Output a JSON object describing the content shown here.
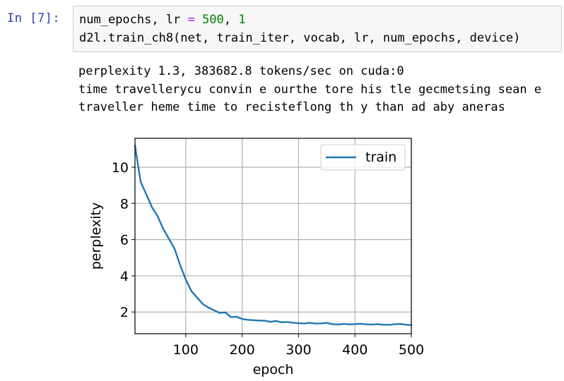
{
  "cell": {
    "prompt": "In [7]:",
    "code_line1": {
      "ident": "num_epochs, lr ",
      "op": "=",
      "num1": "500",
      "sep": ", ",
      "num2": "1"
    },
    "code_line2": "d2l.train_ch8(net, train_iter, vocab, lr, num_epochs, device)"
  },
  "output": {
    "lines": [
      "perplexity 1.3, 383682.8 tokens/sec on cuda:0",
      "time travellerycu convin e ourthe tore his tle gecmetsing sean e",
      "traveller heme time to recisteflong th y than ad aby aneras"
    ]
  },
  "chart_data": {
    "type": "line",
    "xlabel": "epoch",
    "ylabel": "perplexity",
    "xlim": [
      10,
      500
    ],
    "ylim": [
      0.8,
      11.6
    ],
    "xticks": [
      100,
      200,
      300,
      400,
      500
    ],
    "yticks": [
      2,
      4,
      6,
      8,
      10
    ],
    "grid": true,
    "legend": "top-right",
    "series": [
      {
        "name": "train",
        "color": "#1f77b4",
        "x": [
          10,
          20,
          30,
          40,
          50,
          60,
          70,
          80,
          90,
          100,
          110,
          120,
          130,
          140,
          150,
          160,
          170,
          180,
          190,
          200,
          210,
          220,
          230,
          240,
          250,
          260,
          270,
          280,
          290,
          300,
          310,
          320,
          330,
          340,
          350,
          360,
          370,
          380,
          390,
          400,
          410,
          420,
          430,
          440,
          450,
          460,
          470,
          480,
          490,
          500
        ],
        "values": [
          11.2,
          9.2,
          8.5,
          7.8,
          7.3,
          6.6,
          6.05,
          5.5,
          4.6,
          3.8,
          3.15,
          2.8,
          2.45,
          2.25,
          2.1,
          1.95,
          1.98,
          1.72,
          1.74,
          1.62,
          1.57,
          1.55,
          1.53,
          1.52,
          1.46,
          1.5,
          1.43,
          1.45,
          1.41,
          1.38,
          1.36,
          1.4,
          1.36,
          1.37,
          1.4,
          1.33,
          1.31,
          1.34,
          1.32,
          1.33,
          1.35,
          1.32,
          1.31,
          1.33,
          1.3,
          1.29,
          1.32,
          1.34,
          1.3,
          1.28
        ]
      }
    ]
  }
}
